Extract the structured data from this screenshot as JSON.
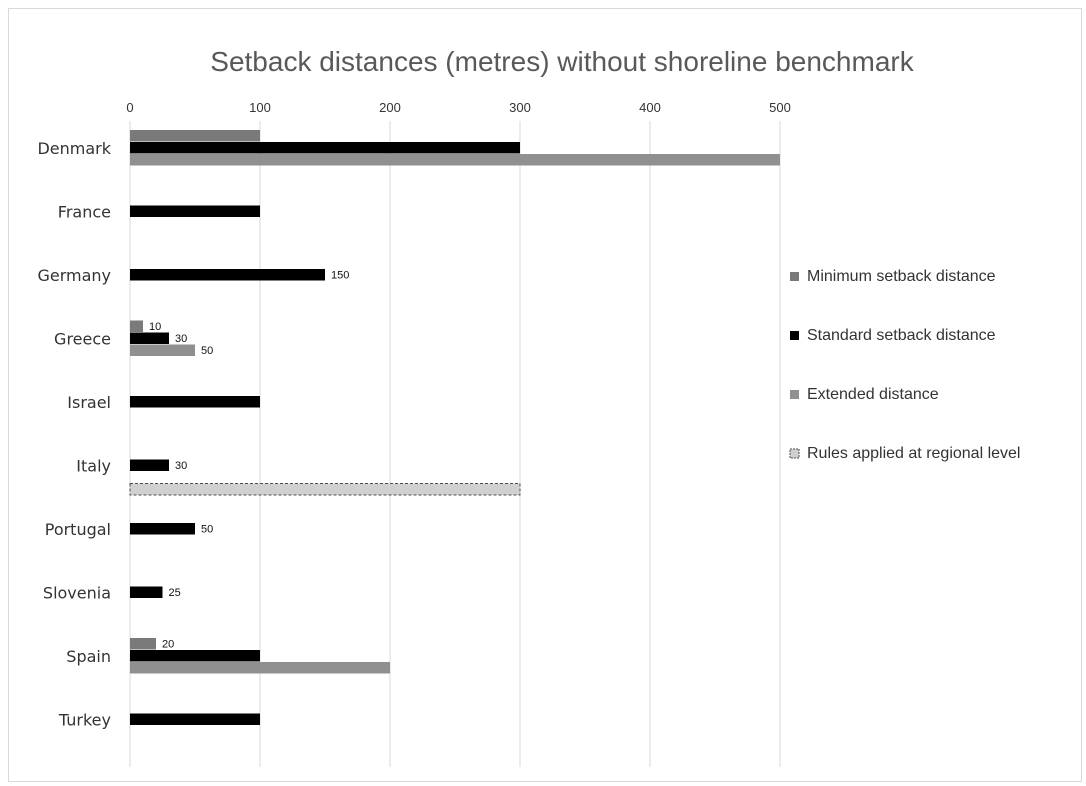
{
  "chart_data": {
    "type": "bar",
    "orientation": "horizontal",
    "title": "Setback distances (metres) without shoreline benchmark",
    "xlabel": "",
    "ylabel": "",
    "xlim": [
      0,
      500
    ],
    "x_ticks": [
      0,
      100,
      200,
      300,
      400,
      500
    ],
    "grid": "vertical",
    "legend_position": "right",
    "categories": [
      "Denmark",
      "France",
      "Germany",
      "Greece",
      "Israel",
      "Italy",
      "Portugal",
      "Slovenia",
      "Spain",
      "Turkey"
    ],
    "series": [
      {
        "name": "Minimum setback distance",
        "color": "#7a7a7a",
        "pattern": "solid",
        "values": [
          100,
          null,
          null,
          10,
          null,
          null,
          null,
          null,
          20,
          null
        ],
        "data_labels": [
          null,
          null,
          null,
          "10",
          null,
          null,
          null,
          null,
          "20",
          null
        ]
      },
      {
        "name": "Standard setback distance",
        "color": "#000000",
        "pattern": "solid",
        "values": [
          300,
          100,
          150,
          30,
          100,
          30,
          50,
          25,
          100,
          100
        ],
        "data_labels": [
          null,
          null,
          "150",
          "30",
          null,
          "30",
          "50",
          "25",
          null,
          null
        ]
      },
      {
        "name": "Extended distance",
        "color": "#909090",
        "pattern": "solid",
        "values": [
          500,
          null,
          null,
          50,
          null,
          null,
          null,
          null,
          200,
          null
        ],
        "data_labels": [
          null,
          null,
          null,
          "50",
          null,
          null,
          null,
          null,
          null,
          null
        ]
      },
      {
        "name": "Rules applied at regional level",
        "color": "#d0d0d0",
        "pattern": "dashed-outline",
        "values": [
          null,
          null,
          null,
          null,
          null,
          300,
          null,
          null,
          null,
          null
        ],
        "data_labels": [
          null,
          null,
          null,
          null,
          null,
          null,
          null,
          null,
          null,
          null
        ]
      }
    ]
  }
}
